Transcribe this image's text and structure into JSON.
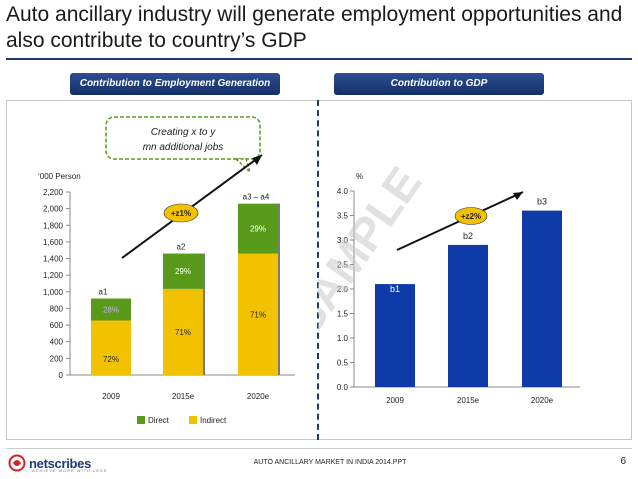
{
  "slide": {
    "title": "Auto ancillary industry will generate employment opportunities and also  contribute to country’s GDP",
    "left_header": "Contribution to Employment Generation",
    "right_header": "Contribution to GDP",
    "callout": "Creating x to y mn additional jobs",
    "watermark": "SAMPLE",
    "footer": "AUTO ANCILLARY MARKET IN INDIA 2014.PPT",
    "page_number": "6",
    "logo": "netscribes",
    "logo_tagline": "ACHIEVE MORE WITH LESS",
    "colors": {
      "navy": "#1f3a70",
      "green": "#5a9a1a",
      "yellow": "#f2c200",
      "gdp_bar": "#0f3ba8",
      "badge": "#f2c200"
    }
  },
  "chart_data": [
    {
      "type": "bar",
      "stacked": true,
      "ylabel": "‘000 Person",
      "ylim": [
        0,
        2200
      ],
      "yticks": [
        0,
        200,
        400,
        600,
        800,
        1000,
        1200,
        1400,
        1600,
        1800,
        2000,
        2200
      ],
      "ytick_labels": [
        "0",
        "200",
        "400",
        "600",
        "800",
        "1,000",
        "1,200",
        "1,400",
        "1,600",
        "1,800",
        "2,000",
        "2,200"
      ],
      "categories": [
        "2009",
        "2015e",
        "2020e"
      ],
      "totals": [
        920,
        1460,
        2060
      ],
      "total_labels": [
        "a1",
        "a2",
        "a3 – a4"
      ],
      "series": [
        {
          "name": "Direct",
          "color": "#5a9a1a",
          "values": [
            265,
            425,
            600
          ],
          "labels": [
            "28%",
            "29%",
            "29%"
          ]
        },
        {
          "name": "Indirect",
          "color": "#f2c200",
          "values": [
            655,
            1035,
            1460
          ],
          "labels": [
            "72%",
            "71%",
            "71%"
          ]
        }
      ],
      "growth_label": "+z1%",
      "legend_position": "bottom"
    },
    {
      "type": "bar",
      "ylabel": "%",
      "ylim": [
        0,
        4.0
      ],
      "yticks": [
        0,
        0.5,
        1.0,
        1.5,
        2.0,
        2.5,
        3.0,
        3.5,
        4.0
      ],
      "ytick_labels": [
        "0.0",
        "0.5",
        "1.0",
        "1.5",
        "2.0",
        "2.5",
        "3.0",
        "3.5",
        "4.0"
      ],
      "categories": [
        "2009",
        "2015e",
        "2020e"
      ],
      "values": [
        2.1,
        2.9,
        3.6
      ],
      "value_labels": [
        "b1",
        "b2",
        "b3"
      ],
      "growth_label": "+z2%"
    }
  ]
}
